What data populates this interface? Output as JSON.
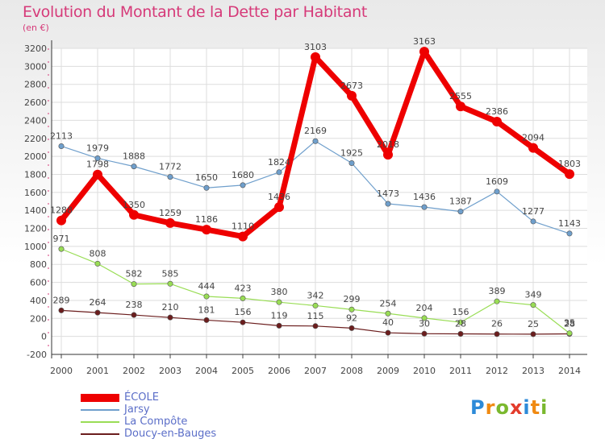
{
  "title": "Evolution du Montant de la Dette par Habitant",
  "subtitle": "(en €)",
  "logo": "Proxiti",
  "chart_data": {
    "type": "line",
    "title": "Evolution du Montant de la Dette par Habitant",
    "subtitle": "(en €)",
    "xlabel": "",
    "ylabel": "",
    "ylim": [
      -200,
      3200
    ],
    "yticks": [
      -200,
      0,
      200,
      400,
      600,
      800,
      1000,
      1200,
      1400,
      1600,
      1800,
      2000,
      2200,
      2400,
      2600,
      2800,
      3000,
      3200
    ],
    "grid": true,
    "legend_position": "bottom-left",
    "x": [
      "2000",
      "2001",
      "2002",
      "2003",
      "2004",
      "2005",
      "2006",
      "2007",
      "2008",
      "2009",
      "2010",
      "2011",
      "2012",
      "2013",
      "2014"
    ],
    "series": [
      {
        "name": "ÉCOLE",
        "color": "#ee0000",
        "values": [
          1288,
          1798,
          1350,
          1259,
          1186,
          1110,
          1436,
          3103,
          2673,
          2018,
          3163,
          2555,
          2386,
          2094,
          1803
        ]
      },
      {
        "name": "Jarsy",
        "color": "#6f9fcc",
        "values": [
          2113,
          1979,
          1888,
          1772,
          1650,
          1680,
          1824,
          2169,
          1925,
          1473,
          1436,
          1387,
          1609,
          1277,
          1143
        ]
      },
      {
        "name": "La Compôte",
        "color": "#99dd55",
        "values": [
          971,
          808,
          582,
          585,
          444,
          423,
          380,
          342,
          299,
          254,
          204,
          156,
          389,
          349,
          35
        ]
      },
      {
        "name": "Doucy-en-Bauges",
        "color": "#6b1d1d",
        "values": [
          289,
          264,
          238,
          210,
          181,
          156,
          119,
          115,
          92,
          40,
          30,
          28,
          26,
          25,
          28
        ]
      }
    ]
  }
}
